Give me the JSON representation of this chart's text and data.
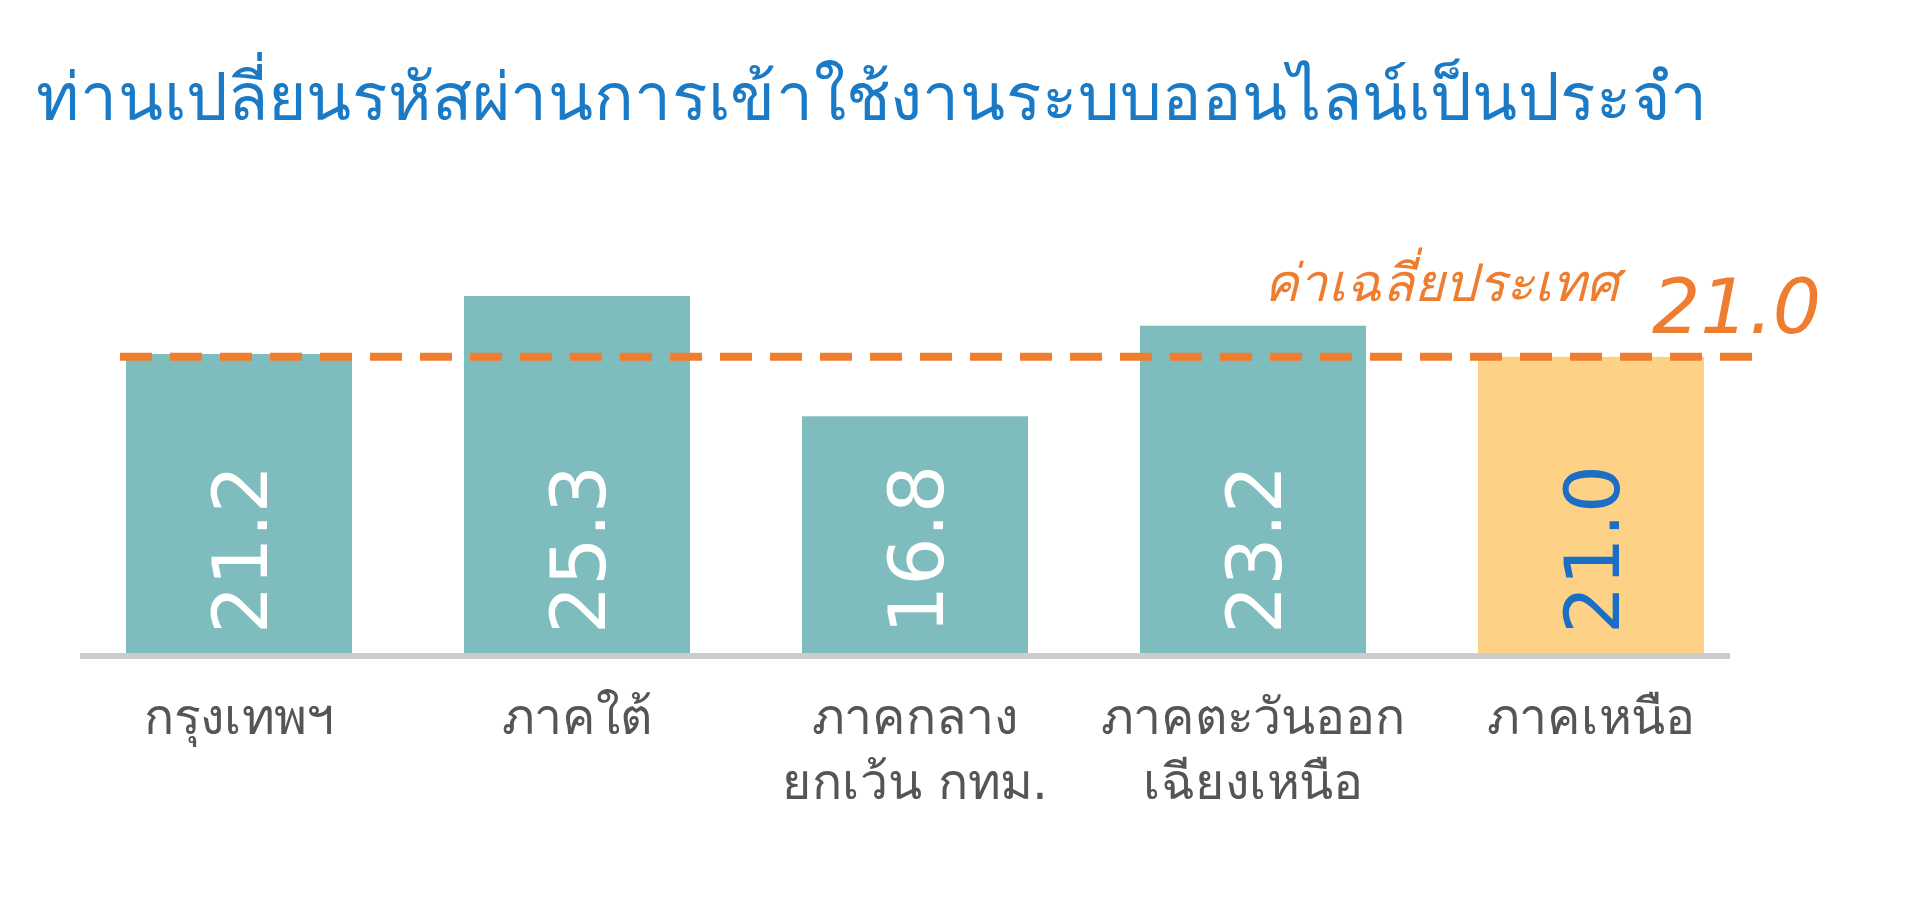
{
  "chart_data": {
    "type": "bar",
    "title": "ท่านเปลี่ยนรหัสผ่านการเข้าใช้งานระบบออนไลน์เป็นประจำ",
    "categories": [
      "กรุงเทพฯ",
      "ภาคใต้",
      "ภาคกลาง\nยกเว้น กทม.",
      "ภาคตะวันออก\nเฉียงเหนือ",
      "ภาคเหนือ"
    ],
    "values": [
      21.2,
      25.3,
      16.8,
      23.2,
      21.0
    ],
    "colors": [
      "#7fbcbd",
      "#7fbcbd",
      "#7fbcbd",
      "#7fbcbd",
      "#fdd286"
    ],
    "value_labels": [
      "21.2",
      "25.3",
      "16.8",
      "23.2",
      "21.0"
    ],
    "ref_lines": [
      {
        "axis": "y",
        "value": 21.0,
        "label": "ค่าเฉลี่ยประเทศ",
        "color": "#ef7d2f",
        "line_style": "dashed"
      }
    ],
    "annotations": [
      {
        "text": "21.0",
        "y": 21.0
      }
    ]
  }
}
